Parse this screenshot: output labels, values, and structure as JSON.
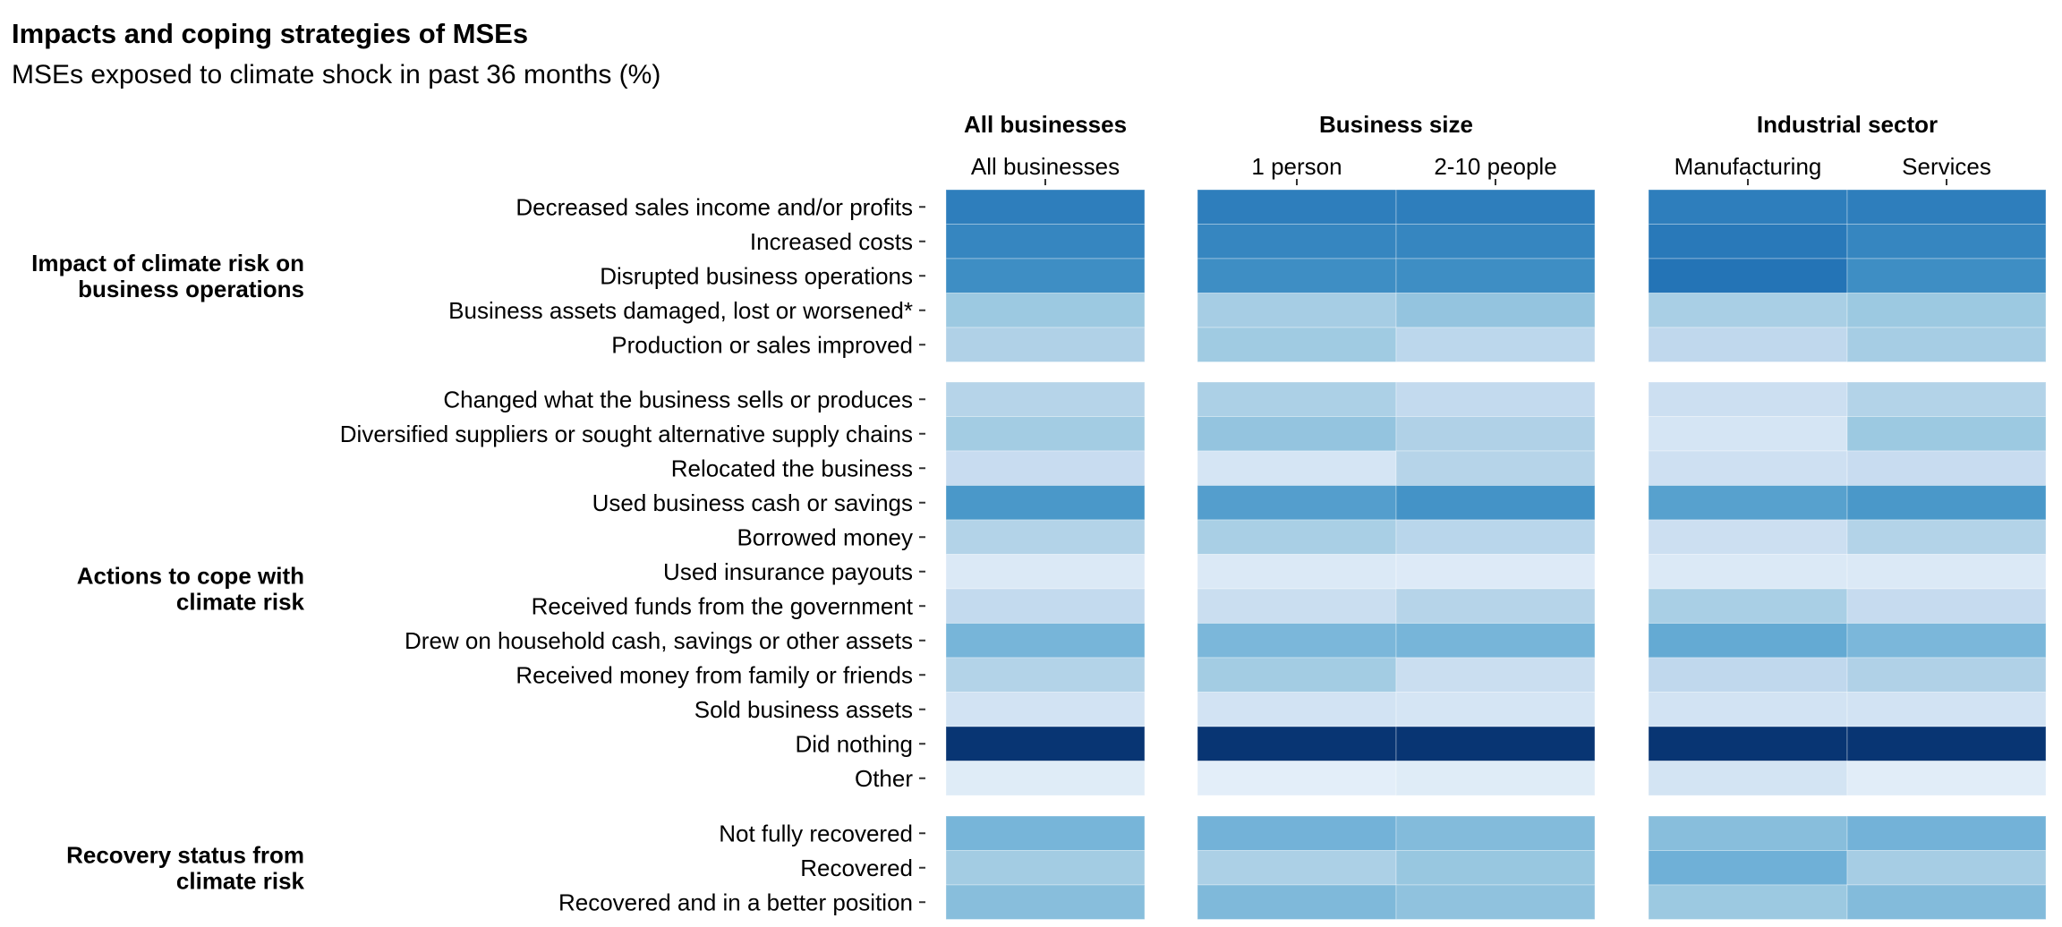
{
  "chart_data": {
    "type": "heatmap",
    "title": "Impacts and coping strategies of MSEs",
    "subtitle": "MSEs exposed to climate shock in past 36 months (%)",
    "panels": [
      {
        "header": "All businesses",
        "columns": [
          "All businesses"
        ]
      },
      {
        "header": "Business size",
        "columns": [
          "1 person",
          "2-10 people"
        ]
      },
      {
        "header": "Industrial sector",
        "columns": [
          "Manufacturing",
          "Services"
        ]
      }
    ],
    "groups": [
      {
        "label_lines": [
          "Impact of climate risk on",
          "business operations"
        ],
        "rows": [
          {
            "label": "Decreased sales income and/or profits",
            "values": [
              70,
              70,
              70,
              70,
              70
            ]
          },
          {
            "label": "Increased costs",
            "values": [
              67,
              67,
              67,
              72,
              67
            ]
          },
          {
            "label": "Disrupted business operations",
            "values": [
              64,
              64,
              64,
              74,
              64
            ]
          },
          {
            "label": "Business assets damaged, lost or worsened*",
            "values": [
              38,
              35,
              40,
              34,
              38
            ]
          },
          {
            "label": "Production or sales improved",
            "values": [
              32,
              37,
              28,
              27,
              35
            ]
          }
        ]
      },
      {
        "label_lines": [
          "Actions to cope with",
          "climate risk"
        ],
        "rows": [
          {
            "label": "Changed what the business sells or produces",
            "values": [
              30,
              33,
              26,
              22,
              31
            ]
          },
          {
            "label": "Diversified suppliers or sought alternative supply chains",
            "values": [
              36,
              40,
              32,
              17,
              38
            ]
          },
          {
            "label": "Relocated the business",
            "values": [
              24,
              17,
              30,
              21,
              24
            ]
          },
          {
            "label": "Used business cash or savings",
            "values": [
              60,
              57,
              62,
              56,
              60
            ]
          },
          {
            "label": "Borrowed money",
            "values": [
              31,
              34,
              29,
              22,
              31
            ]
          },
          {
            "label": "Used insurance payouts",
            "values": [
              14,
              14,
              13,
              14,
              14
            ]
          },
          {
            "label": "Received funds from the government",
            "values": [
              26,
              23,
              30,
              34,
              25
            ]
          },
          {
            "label": "Drew on household cash, savings or other assets",
            "values": [
              47,
              46,
              47,
              52,
              46
            ]
          },
          {
            "label": "Received money from family or friends",
            "values": [
              31,
              36,
              23,
              27,
              32
            ]
          },
          {
            "label": "Sold business assets",
            "values": [
              19,
              19,
              17,
              19,
              19
            ]
          },
          {
            "label": "Did nothing",
            "values": [
              98,
              98,
              98,
              98,
              98
            ]
          },
          {
            "label": "Other",
            "values": [
              12,
              10,
              12,
              18,
              11
            ]
          }
        ]
      },
      {
        "label_lines": [
          "Recovery status from",
          "climate risk"
        ],
        "rows": [
          {
            "label": "Not fully recovered",
            "values": [
              47,
              48,
              44,
              43,
              48
            ]
          },
          {
            "label": "Recovered",
            "values": [
              36,
              33,
              39,
              49,
              35
            ]
          },
          {
            "label": "Recovered and in a better position",
            "values": [
              43,
              45,
              41,
              38,
              44
            ]
          }
        ]
      }
    ],
    "color_scale": {
      "low": "#f7fbff",
      "high": "#08306b",
      "palette": "Blues"
    }
  }
}
